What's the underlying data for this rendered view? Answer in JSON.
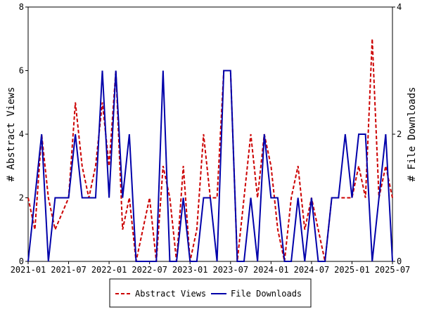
{
  "chart_data": {
    "type": "line",
    "categories": [
      "2021-01",
      "2021-02",
      "2021-03",
      "2021-04",
      "2021-05",
      "2021-06",
      "2021-07",
      "2021-08",
      "2021-09",
      "2021-10",
      "2021-11",
      "2021-12",
      "2022-01",
      "2022-02",
      "2022-03",
      "2022-04",
      "2022-05",
      "2022-06",
      "2022-07",
      "2022-08",
      "2022-09",
      "2022-10",
      "2022-11",
      "2022-12",
      "2023-01",
      "2023-02",
      "2023-03",
      "2023-04",
      "2023-05",
      "2023-06",
      "2023-07",
      "2023-08",
      "2023-09",
      "2023-10",
      "2023-11",
      "2023-12",
      "2024-01",
      "2024-02",
      "2024-03",
      "2024-04",
      "2024-05",
      "2024-06",
      "2024-07",
      "2024-08",
      "2024-09",
      "2024-10",
      "2024-11",
      "2024-12",
      "2025-01",
      "2025-02",
      "2025-03",
      "2025-04",
      "2025-05",
      "2025-06",
      "2025-07"
    ],
    "xticks": [
      "2021-01",
      "2021-07",
      "2022-01",
      "2022-07",
      "2023-01",
      "2023-07",
      "2024-01",
      "2024-07",
      "2025-01",
      "2025-07"
    ],
    "ylabel": "# Abstract Views",
    "y2label": "# File Downloads",
    "ylim": [
      0,
      8
    ],
    "yticks": [
      0,
      2,
      4,
      6,
      8
    ],
    "y2lim": [
      0,
      4
    ],
    "y2ticks": [
      0,
      2,
      4
    ],
    "series": [
      {
        "name": "Abstract Views",
        "color": "#cc0000",
        "dash": true,
        "values": [
          2,
          1,
          4,
          2,
          1,
          1.5,
          2,
          5,
          3,
          2,
          3,
          5,
          3,
          6,
          1,
          2,
          0,
          1,
          2,
          0,
          3,
          2,
          0,
          3,
          0,
          1,
          4,
          2,
          2,
          6,
          6,
          0,
          2,
          4,
          2,
          4,
          3,
          1,
          0,
          2,
          3,
          1,
          2,
          1,
          0,
          2,
          2,
          2,
          2,
          3,
          2,
          7,
          2,
          3,
          2
        ]
      },
      {
        "name": "File Downloads",
        "color": "#0000aa",
        "axis": "y2",
        "values": [
          0,
          1,
          2,
          0,
          1,
          1,
          1,
          2,
          1,
          1,
          1,
          3,
          1,
          3,
          1,
          2,
          0,
          0,
          0,
          0,
          3,
          0,
          0,
          1,
          0,
          0,
          1,
          1,
          0,
          3,
          3,
          0,
          0,
          1,
          0,
          2,
          1,
          1,
          0,
          0,
          1,
          0,
          1,
          0,
          0,
          1,
          1,
          2,
          1,
          2,
          2,
          0,
          1,
          2,
          0
        ]
      }
    ]
  }
}
